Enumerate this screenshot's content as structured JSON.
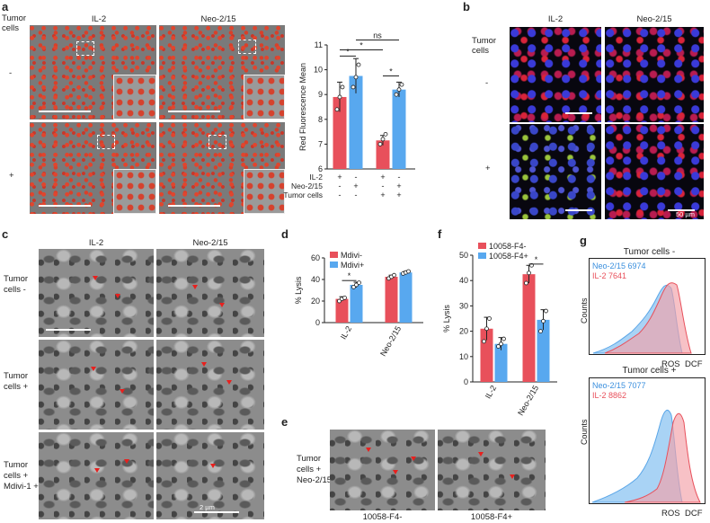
{
  "panels": {
    "a": {
      "label": "a",
      "col1": "IL-2",
      "col2": "Neo-2/15",
      "row_header": "Tumor cells",
      "row1": "-",
      "row2": "+"
    },
    "b": {
      "label": "b",
      "col1": "IL-2",
      "col2": "Neo-2/15",
      "row_header": "Tumor cells",
      "row1": "-",
      "row2": "+",
      "scale": "50 µm"
    },
    "c": {
      "label": "c",
      "col1": "IL-2",
      "col2": "Neo-2/15",
      "row1": "Tumor cells -",
      "row2": "Tumor cells +",
      "row3": "Tumor cells + Mdivi-1 +",
      "scale": "2 µm"
    },
    "d": {
      "label": "d"
    },
    "e": {
      "label": "e",
      "row_label": "Tumor cells + Neo-2/15",
      "col1": "10058-F4-",
      "col2": "10058-F4+"
    },
    "f": {
      "label": "f"
    },
    "g": {
      "label": "g",
      "top_title": "Tumor cells -",
      "bottom_title": "Tumor cells +",
      "ylabel": "Counts",
      "xlabel1": "ROS",
      "xlabel2": "DCF",
      "top_legend": [
        "Neo-2/15  6974",
        "IL-2  7641"
      ],
      "bottom_legend": [
        "Neo-2/15  7077",
        "IL-2  8862"
      ]
    }
  },
  "colors": {
    "red": "#e8505b",
    "blue": "#58a8ef",
    "dark": "#222222"
  },
  "chart_data": [
    {
      "id": "a-chart",
      "type": "bar",
      "ylabel": "Red Fluorescence Mean",
      "ylim": [
        6,
        11
      ],
      "yticks": [
        "6",
        "7",
        "8",
        "9",
        "10",
        "11"
      ],
      "groups": [
        {
          "bars": [
            {
              "series": "IL-2",
              "value": 8.9,
              "err": 0.6,
              "color": "red"
            },
            {
              "series": "Neo-2/15",
              "value": 9.75,
              "err": 0.7,
              "color": "blue"
            }
          ]
        },
        {
          "bars": [
            {
              "series": "IL-2",
              "value": 7.15,
              "err": 0.2,
              "color": "red"
            },
            {
              "series": "Neo-2/15",
              "value": 9.2,
              "err": 0.3,
              "color": "blue"
            }
          ]
        }
      ],
      "points": [
        [
          8.4,
          8.9,
          9.3
        ],
        [
          9.3,
          9.7,
          10.2
        ],
        [
          7.0,
          7.2,
          7.4
        ],
        [
          9.0,
          9.2,
          9.4
        ]
      ],
      "condition_rows": [
        {
          "label": "IL-2",
          "marks": [
            "+",
            "-",
            "+",
            "-"
          ]
        },
        {
          "label": "Neo-2/15",
          "marks": [
            "-",
            "+",
            "-",
            "+"
          ]
        },
        {
          "label": "Tumor cells",
          "marks": [
            "-",
            "-",
            "+",
            "+"
          ]
        }
      ],
      "significance": [
        "*",
        "*",
        "*",
        "ns"
      ]
    },
    {
      "id": "d-chart",
      "type": "bar",
      "ylabel": "% Lysis",
      "ylim": [
        0,
        60
      ],
      "yticks": [
        "0",
        "20",
        "40",
        "60"
      ],
      "categories": [
        "IL-2",
        "Neo-2/15"
      ],
      "series": [
        {
          "name": "Mdivi-",
          "values": [
            22,
            42.5
          ],
          "errors": [
            2,
            1.5
          ]
        },
        {
          "name": "Mdivi+",
          "values": [
            35,
            46.5
          ],
          "errors": [
            2.5,
            1
          ]
        }
      ],
      "points": [
        [
          [
            20,
            22,
            23
          ],
          [
            33,
            35,
            37
          ]
        ],
        [
          [
            41,
            42.5,
            44
          ],
          [
            45.5,
            46.5,
            47.5
          ]
        ]
      ],
      "significance": [
        "*"
      ]
    },
    {
      "id": "f-chart",
      "type": "bar",
      "ylabel": "% Lysis",
      "ylim": [
        0,
        50
      ],
      "yticks": [
        "0",
        "10",
        "20",
        "30",
        "40",
        "50"
      ],
      "categories": [
        "IL-2",
        "Neo-2/15"
      ],
      "series": [
        {
          "name": "10058-F4-",
          "values": [
            21,
            42.5
          ],
          "errors": [
            4.5,
            3.5
          ]
        },
        {
          "name": "10058-F4+",
          "values": [
            15,
            24.5
          ],
          "errors": [
            2.5,
            4
          ]
        }
      ],
      "points": [
        [
          [
            16,
            21,
            25
          ],
          [
            14,
            15,
            17
          ]
        ],
        [
          [
            39,
            43,
            46
          ],
          [
            20,
            24,
            28
          ]
        ]
      ],
      "significance": [
        "*"
      ]
    }
  ]
}
